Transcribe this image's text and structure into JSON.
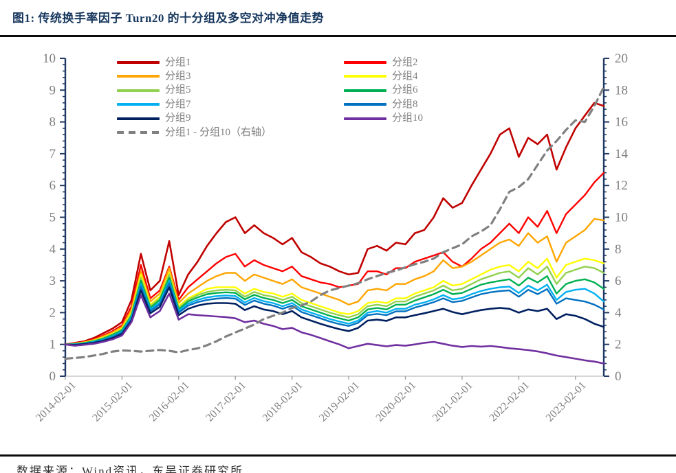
{
  "header": {
    "title": "图1:  传统换手率因子 Turn20 的十分组及多空对冲净值走势"
  },
  "footer": {
    "source": "数据来源：Wind资讯，东吴证券研究所"
  },
  "colors": {
    "title": "#17375E",
    "axis": "#1F3864",
    "tick_label": "#7F7F7F",
    "x_axis_line": "#C9C9C9",
    "x_axis_tick": "#A6A6A6",
    "divider": "#0B0B0B"
  },
  "legend": {
    "column1": [
      "分组1",
      "分组3",
      "分组5",
      "分组7",
      "分组9",
      "分组1 - 分组10（右轴）"
    ],
    "column2": [
      "分组2",
      "分组4",
      "分组6",
      "分组8",
      "分组10"
    ]
  },
  "chart_data": {
    "type": "line",
    "title": "传统换手率因子 Turn20 的十分组及多空对冲净值走势",
    "x_axis": {
      "tick_labels": [
        "2014-02-01",
        "2015-02-01",
        "2016-02-01",
        "2017-02-01",
        "2018-02-01",
        "2019-02-01",
        "2020-02-01",
        "2021-02-01",
        "2022-02-01",
        "2023-02-01"
      ],
      "months_per_point": 2,
      "total_months": 114,
      "start": "2014-02-01"
    },
    "y_left": {
      "min": 0,
      "max": 10,
      "major_step": 1,
      "minor_step": 0.2
    },
    "y_right": {
      "min": 0,
      "max": 20,
      "major_step": 2,
      "minor_step": 0.4
    },
    "grid": false,
    "legend_position": "top-inside",
    "series": [
      {
        "name": "分组1",
        "color": "#C00000",
        "axis": "left",
        "dash": false,
        "width": 2.6,
        "values": [
          1.0,
          1.05,
          1.1,
          1.2,
          1.35,
          1.5,
          1.7,
          2.4,
          3.85,
          2.7,
          3.0,
          4.25,
          2.55,
          3.2,
          3.6,
          4.1,
          4.5,
          4.85,
          5.0,
          4.5,
          4.75,
          4.5,
          4.35,
          4.15,
          4.35,
          3.9,
          3.75,
          3.55,
          3.45,
          3.3,
          3.2,
          3.25,
          4.0,
          4.1,
          3.95,
          4.2,
          4.15,
          4.5,
          4.6,
          5.0,
          5.6,
          5.3,
          5.45,
          6.0,
          6.5,
          7.0,
          7.6,
          7.8,
          6.9,
          7.5,
          7.3,
          7.6,
          6.5,
          7.2,
          7.8,
          8.2,
          8.6,
          8.5
        ]
      },
      {
        "name": "分组2",
        "color": "#FF0000",
        "axis": "left",
        "dash": false,
        "width": 2.4,
        "values": [
          1.0,
          1.04,
          1.08,
          1.16,
          1.28,
          1.42,
          1.6,
          2.2,
          3.5,
          2.45,
          2.7,
          3.45,
          2.4,
          2.8,
          3.05,
          3.3,
          3.55,
          3.75,
          3.85,
          3.45,
          3.65,
          3.5,
          3.4,
          3.3,
          3.45,
          3.15,
          3.05,
          2.95,
          2.9,
          2.8,
          2.85,
          2.9,
          3.3,
          3.3,
          3.2,
          3.4,
          3.4,
          3.6,
          3.7,
          3.8,
          3.9,
          3.6,
          3.45,
          3.7,
          4.0,
          4.2,
          4.5,
          4.8,
          4.5,
          5.0,
          4.7,
          5.2,
          4.5,
          5.1,
          5.4,
          5.7,
          6.1,
          6.4
        ]
      },
      {
        "name": "分组3",
        "color": "#FFA500",
        "axis": "left",
        "dash": false,
        "width": 2.4,
        "values": [
          1.0,
          1.03,
          1.07,
          1.14,
          1.25,
          1.38,
          1.55,
          2.1,
          3.3,
          2.35,
          2.6,
          3.4,
          2.3,
          2.6,
          2.8,
          3.0,
          3.15,
          3.25,
          3.25,
          3.0,
          3.2,
          3.1,
          3.0,
          2.9,
          3.05,
          2.8,
          2.7,
          2.6,
          2.5,
          2.4,
          2.25,
          2.35,
          2.7,
          2.75,
          2.7,
          2.9,
          2.9,
          3.05,
          3.15,
          3.3,
          3.65,
          3.4,
          3.45,
          3.6,
          3.8,
          4.0,
          4.2,
          4.3,
          4.1,
          4.5,
          4.2,
          4.4,
          3.6,
          4.2,
          4.4,
          4.6,
          4.95,
          4.9
        ]
      },
      {
        "name": "分组4",
        "color": "#FFFF00",
        "axis": "left",
        "dash": false,
        "width": 2.4,
        "values": [
          1.0,
          1.02,
          1.06,
          1.12,
          1.22,
          1.34,
          1.5,
          2.0,
          3.2,
          2.25,
          2.5,
          3.25,
          2.2,
          2.45,
          2.6,
          2.75,
          2.8,
          2.8,
          2.8,
          2.6,
          2.75,
          2.65,
          2.6,
          2.5,
          2.6,
          2.4,
          2.3,
          2.2,
          2.1,
          2.0,
          1.95,
          2.05,
          2.3,
          2.35,
          2.3,
          2.45,
          2.45,
          2.6,
          2.7,
          2.8,
          3.0,
          2.85,
          2.9,
          3.05,
          3.2,
          3.35,
          3.45,
          3.5,
          3.3,
          3.6,
          3.4,
          3.7,
          3.1,
          3.5,
          3.6,
          3.7,
          3.65,
          3.55
        ]
      },
      {
        "name": "分组5",
        "color": "#92D050",
        "axis": "left",
        "dash": false,
        "width": 2.4,
        "values": [
          1.0,
          1.02,
          1.05,
          1.11,
          1.2,
          1.32,
          1.47,
          1.95,
          3.1,
          2.2,
          2.45,
          3.2,
          2.15,
          2.4,
          2.55,
          2.65,
          2.7,
          2.72,
          2.7,
          2.5,
          2.65,
          2.55,
          2.5,
          2.4,
          2.5,
          2.3,
          2.2,
          2.1,
          2.0,
          1.92,
          1.85,
          1.95,
          2.2,
          2.25,
          2.2,
          2.35,
          2.35,
          2.5,
          2.6,
          2.7,
          2.85,
          2.7,
          2.75,
          2.9,
          3.05,
          3.15,
          3.25,
          3.3,
          3.1,
          3.4,
          3.2,
          3.45,
          2.9,
          3.25,
          3.35,
          3.45,
          3.4,
          3.25
        ]
      },
      {
        "name": "分组6",
        "color": "#00B050",
        "axis": "left",
        "dash": false,
        "width": 2.4,
        "values": [
          1.0,
          1.01,
          1.04,
          1.1,
          1.18,
          1.3,
          1.45,
          1.9,
          3.0,
          2.15,
          2.4,
          3.1,
          2.1,
          2.35,
          2.48,
          2.58,
          2.62,
          2.64,
          2.62,
          2.42,
          2.56,
          2.46,
          2.4,
          2.3,
          2.4,
          2.2,
          2.1,
          2.0,
          1.9,
          1.82,
          1.75,
          1.85,
          2.1,
          2.15,
          2.1,
          2.25,
          2.25,
          2.38,
          2.48,
          2.58,
          2.72,
          2.58,
          2.62,
          2.75,
          2.88,
          2.95,
          3.0,
          3.05,
          2.85,
          3.1,
          2.95,
          3.15,
          2.6,
          2.9,
          3.0,
          3.05,
          2.95,
          2.75
        ]
      },
      {
        "name": "分组7",
        "color": "#00B0F0",
        "axis": "left",
        "dash": false,
        "width": 2.4,
        "values": [
          1.0,
          1.0,
          1.03,
          1.08,
          1.15,
          1.26,
          1.4,
          1.85,
          2.9,
          2.1,
          2.32,
          3.0,
          2.05,
          2.28,
          2.4,
          2.48,
          2.52,
          2.54,
          2.52,
          2.32,
          2.46,
          2.36,
          2.3,
          2.2,
          2.3,
          2.1,
          2.0,
          1.9,
          1.8,
          1.72,
          1.65,
          1.75,
          2.0,
          2.05,
          2.0,
          2.12,
          2.12,
          2.25,
          2.32,
          2.42,
          2.55,
          2.42,
          2.46,
          2.58,
          2.68,
          2.75,
          2.8,
          2.82,
          2.62,
          2.85,
          2.7,
          2.88,
          2.4,
          2.65,
          2.72,
          2.75,
          2.6,
          2.35
        ]
      },
      {
        "name": "分组8",
        "color": "#0070C0",
        "axis": "left",
        "dash": false,
        "width": 2.4,
        "values": [
          1.0,
          0.99,
          1.02,
          1.06,
          1.13,
          1.23,
          1.37,
          1.8,
          2.82,
          2.05,
          2.26,
          2.92,
          2.0,
          2.22,
          2.33,
          2.4,
          2.44,
          2.46,
          2.44,
          2.24,
          2.38,
          2.28,
          2.22,
          2.12,
          2.22,
          2.02,
          1.92,
          1.82,
          1.72,
          1.64,
          1.58,
          1.68,
          1.92,
          1.96,
          1.92,
          2.04,
          2.04,
          2.16,
          2.24,
          2.33,
          2.45,
          2.33,
          2.37,
          2.48,
          2.58,
          2.64,
          2.68,
          2.7,
          2.5,
          2.72,
          2.58,
          2.74,
          2.28,
          2.45,
          2.4,
          2.35,
          2.25,
          2.1
        ]
      },
      {
        "name": "分组9",
        "color": "#002060",
        "axis": "left",
        "dash": false,
        "width": 2.6,
        "values": [
          1.0,
          0.98,
          1.01,
          1.05,
          1.11,
          1.2,
          1.33,
          1.75,
          2.7,
          1.98,
          2.18,
          2.8,
          1.92,
          2.12,
          2.22,
          2.28,
          2.3,
          2.3,
          2.28,
          2.08,
          2.2,
          2.1,
          2.05,
          1.95,
          2.05,
          1.85,
          1.75,
          1.65,
          1.56,
          1.48,
          1.42,
          1.52,
          1.75,
          1.78,
          1.74,
          1.85,
          1.85,
          1.92,
          1.98,
          2.05,
          2.12,
          2.02,
          1.95,
          2.02,
          2.08,
          2.12,
          2.15,
          2.12,
          2.0,
          2.1,
          2.05,
          2.12,
          1.8,
          1.95,
          1.9,
          1.8,
          1.65,
          1.55
        ]
      },
      {
        "name": "分组10",
        "color": "#7030A0",
        "axis": "left",
        "dash": false,
        "width": 2.6,
        "values": [
          1.0,
          0.96,
          0.99,
          1.02,
          1.08,
          1.16,
          1.28,
          1.7,
          2.55,
          1.85,
          2.05,
          2.6,
          1.78,
          1.95,
          1.92,
          1.9,
          1.88,
          1.86,
          1.82,
          1.7,
          1.75,
          1.65,
          1.58,
          1.48,
          1.52,
          1.38,
          1.3,
          1.2,
          1.1,
          1.0,
          0.88,
          0.95,
          1.02,
          0.98,
          0.94,
          0.98,
          0.96,
          1.0,
          1.05,
          1.08,
          1.02,
          0.96,
          0.92,
          0.95,
          0.93,
          0.95,
          0.92,
          0.88,
          0.85,
          0.82,
          0.78,
          0.72,
          0.65,
          0.6,
          0.55,
          0.5,
          0.46,
          0.4
        ]
      },
      {
        "name": "分组1 - 分组10（右轴）",
        "color": "#808080",
        "axis": "right",
        "dash": true,
        "width": 3.2,
        "values": [
          1.1,
          1.15,
          1.2,
          1.3,
          1.4,
          1.55,
          1.62,
          1.6,
          1.55,
          1.6,
          1.65,
          1.6,
          1.5,
          1.65,
          1.75,
          1.95,
          2.2,
          2.5,
          2.75,
          3.0,
          3.25,
          3.6,
          3.8,
          4.0,
          4.3,
          4.45,
          4.7,
          5.1,
          5.4,
          5.55,
          5.7,
          5.85,
          6.1,
          6.3,
          6.5,
          6.65,
          6.85,
          7.05,
          7.2,
          7.4,
          7.8,
          8.05,
          8.3,
          8.8,
          9.1,
          9.5,
          10.5,
          11.6,
          11.9,
          12.4,
          13.3,
          14.2,
          14.8,
          15.5,
          16.1,
          16.0,
          17.0,
          18.2
        ]
      }
    ]
  }
}
